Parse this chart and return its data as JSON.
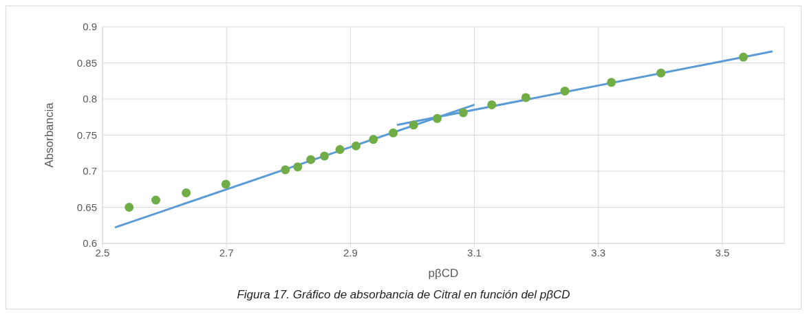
{
  "chart_data": {
    "type": "scatter",
    "xlabel": "pβCD",
    "ylabel": "Absorbancia",
    "annotations": [
      "Figura 17. Gráfico de absorbancia de Citral en función del pβCD"
    ],
    "xlim": [
      2.5,
      3.6
    ],
    "xticks": [
      2.5,
      2.7,
      2.9,
      3.1,
      3.3,
      3.5
    ],
    "ylim": [
      0.6,
      0.9
    ],
    "yticks": [
      0.6,
      0.65,
      0.7,
      0.75,
      0.8,
      0.85,
      0.9
    ],
    "grid": true,
    "legend": false,
    "series": [
      {
        "marker": "circle",
        "color": "#70ad47",
        "x": [
          2.543,
          2.586,
          2.635,
          2.699,
          2.795,
          2.815,
          2.836,
          2.858,
          2.883,
          2.909,
          2.937,
          2.969,
          3.002,
          3.04,
          3.082,
          3.128,
          3.183,
          3.246,
          3.321,
          3.401,
          3.534
        ],
        "values": [
          0.65,
          0.66,
          0.67,
          0.682,
          0.702,
          0.706,
          0.716,
          0.721,
          0.73,
          0.735,
          0.744,
          0.753,
          0.764,
          0.773,
          0.781,
          0.792,
          0.802,
          0.811,
          0.823,
          0.836,
          0.858
        ]
      },
      {
        "type": "line",
        "color": "#5b9bd5",
        "line_style": "solid",
        "x": [
          2.52,
          3.1
        ],
        "values": [
          0.622,
          0.792
        ]
      },
      {
        "type": "line",
        "color": "#5b9bd5",
        "line_style": "solid",
        "x": [
          2.975,
          3.581
        ],
        "values": [
          0.764,
          0.866
        ]
      }
    ]
  }
}
